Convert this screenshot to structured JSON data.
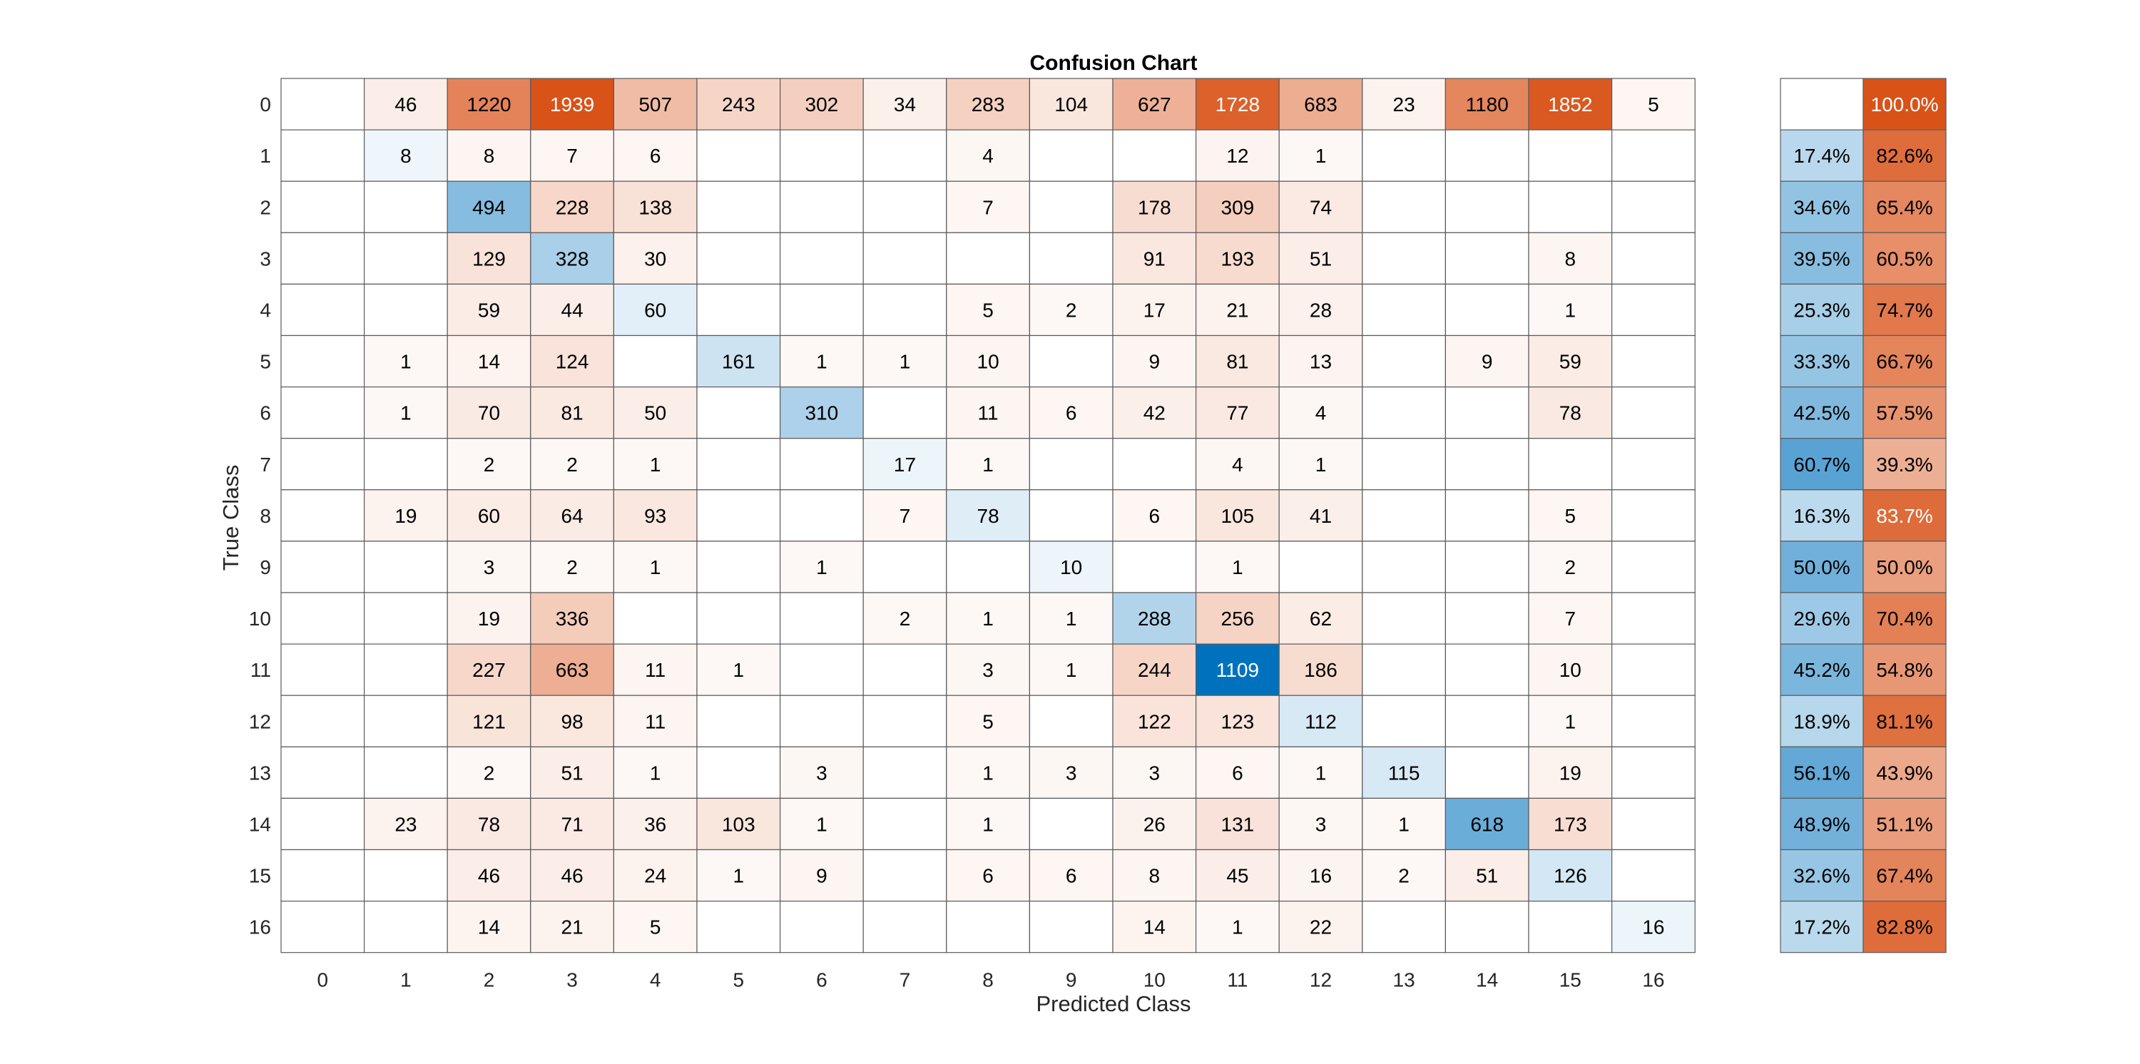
{
  "chart_data": {
    "type": "heatmap",
    "subtype": "confusion-chart",
    "title": "Confusion Chart",
    "xlabel": "Predicted Class",
    "ylabel": "True Class",
    "classes": [
      "0",
      "1",
      "2",
      "3",
      "4",
      "5",
      "6",
      "7",
      "8",
      "9",
      "10",
      "11",
      "12",
      "13",
      "14",
      "15",
      "16"
    ],
    "matrix": [
      [
        null,
        46,
        1220,
        1939,
        507,
        243,
        302,
        34,
        283,
        104,
        627,
        1728,
        683,
        23,
        1180,
        1852,
        5
      ],
      [
        null,
        8,
        8,
        7,
        6,
        null,
        null,
        null,
        4,
        null,
        null,
        12,
        1,
        null,
        null,
        null,
        null
      ],
      [
        null,
        null,
        494,
        228,
        138,
        null,
        null,
        null,
        7,
        null,
        178,
        309,
        74,
        null,
        null,
        null,
        null
      ],
      [
        null,
        null,
        129,
        328,
        30,
        null,
        null,
        null,
        null,
        null,
        91,
        193,
        51,
        null,
        null,
        8,
        null
      ],
      [
        null,
        null,
        59,
        44,
        60,
        null,
        null,
        null,
        5,
        2,
        17,
        21,
        28,
        null,
        null,
        1,
        null
      ],
      [
        null,
        1,
        14,
        124,
        null,
        161,
        1,
        1,
        10,
        null,
        9,
        81,
        13,
        null,
        9,
        59,
        null
      ],
      [
        null,
        1,
        70,
        81,
        50,
        null,
        310,
        null,
        11,
        6,
        42,
        77,
        4,
        null,
        null,
        78,
        null
      ],
      [
        null,
        null,
        2,
        2,
        1,
        null,
        null,
        17,
        1,
        null,
        null,
        4,
        1,
        null,
        null,
        null,
        null
      ],
      [
        null,
        19,
        60,
        64,
        93,
        null,
        null,
        7,
        78,
        null,
        6,
        105,
        41,
        null,
        null,
        5,
        null
      ],
      [
        null,
        null,
        3,
        2,
        1,
        null,
        1,
        null,
        null,
        10,
        null,
        1,
        null,
        null,
        null,
        2,
        null
      ],
      [
        null,
        null,
        19,
        336,
        null,
        null,
        null,
        2,
        1,
        1,
        288,
        256,
        62,
        null,
        null,
        7,
        null
      ],
      [
        null,
        null,
        227,
        663,
        11,
        1,
        null,
        null,
        3,
        1,
        244,
        1109,
        186,
        null,
        null,
        10,
        null
      ],
      [
        null,
        null,
        121,
        98,
        11,
        null,
        null,
        null,
        5,
        null,
        122,
        123,
        112,
        null,
        null,
        1,
        null
      ],
      [
        null,
        null,
        2,
        51,
        1,
        null,
        3,
        null,
        1,
        3,
        3,
        6,
        1,
        115,
        null,
        19,
        null
      ],
      [
        null,
        23,
        78,
        71,
        36,
        103,
        1,
        null,
        1,
        null,
        26,
        131,
        3,
        1,
        618,
        173,
        null
      ],
      [
        null,
        null,
        46,
        46,
        24,
        1,
        9,
        null,
        6,
        6,
        8,
        45,
        16,
        2,
        51,
        126,
        null
      ],
      [
        null,
        null,
        14,
        21,
        5,
        null,
        null,
        null,
        null,
        null,
        14,
        1,
        22,
        null,
        null,
        null,
        16
      ]
    ],
    "row_summary": {
      "correct": [
        null,
        "17.4%",
        "34.6%",
        "39.5%",
        "25.3%",
        "33.3%",
        "42.5%",
        "60.7%",
        "16.3%",
        "50.0%",
        "29.6%",
        "45.2%",
        "18.9%",
        "56.1%",
        "48.9%",
        "32.6%",
        "17.2%"
      ],
      "incorrect": [
        "100.0%",
        "82.6%",
        "65.4%",
        "60.5%",
        "74.7%",
        "66.7%",
        "57.5%",
        "39.3%",
        "83.7%",
        "50.0%",
        "70.4%",
        "54.8%",
        "81.1%",
        "43.9%",
        "51.1%",
        "67.4%",
        "82.8%"
      ]
    },
    "colors": {
      "correct": "#0072bd",
      "incorrect": "#d95319",
      "grid": "#5a5a5a",
      "text_dark": "#000000",
      "text_light": "#ffffff"
    }
  }
}
